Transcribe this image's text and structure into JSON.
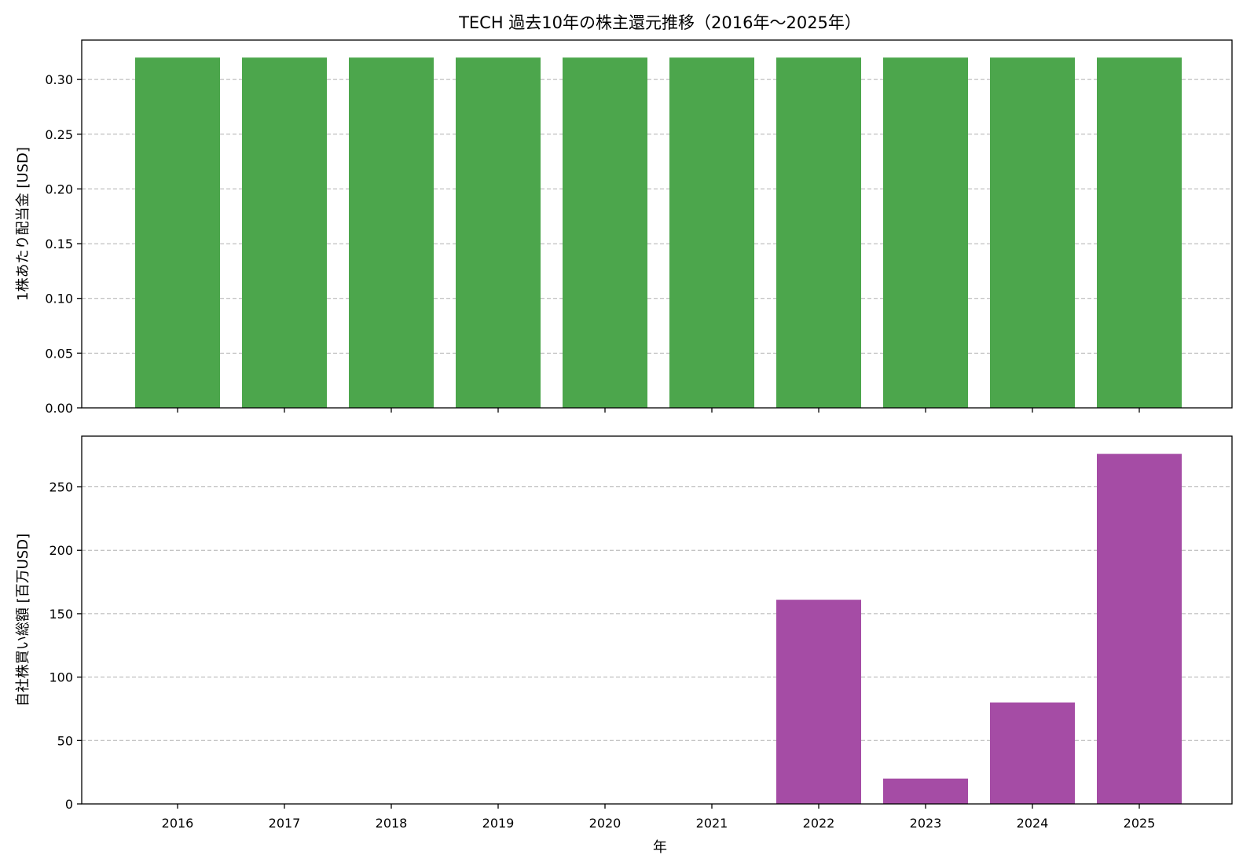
{
  "chart_data": {
    "type": "bar",
    "title": "TECH 過去10年の株主還元推移（2016年〜2025年）",
    "xlabel": "年",
    "categories": [
      "2016",
      "2017",
      "2018",
      "2019",
      "2020",
      "2021",
      "2022",
      "2023",
      "2024",
      "2025"
    ],
    "grid": "y-dashed",
    "panels": [
      {
        "name": "dividend",
        "ylabel": "1株あたり配当金 [USD]",
        "color": "#4ca64c",
        "values": [
          0.32,
          0.32,
          0.32,
          0.32,
          0.32,
          0.32,
          0.32,
          0.32,
          0.32,
          0.32
        ],
        "ylim": [
          0,
          0.336
        ],
        "yticks": [
          0.0,
          0.05,
          0.1,
          0.15,
          0.2,
          0.25,
          0.3
        ],
        "ytick_labels": [
          "0.00",
          "0.05",
          "0.10",
          "0.15",
          "0.20",
          "0.25",
          "0.30"
        ]
      },
      {
        "name": "buyback",
        "ylabel": "自社株買い総額 [百万USD]",
        "color": "#a54ca5",
        "values": [
          0,
          0,
          0,
          0,
          0,
          0,
          161,
          20,
          80,
          276
        ],
        "ylim": [
          0,
          290
        ],
        "yticks": [
          0,
          50,
          100,
          150,
          200,
          250
        ],
        "ytick_labels": [
          "0",
          "50",
          "100",
          "150",
          "200",
          "250"
        ]
      }
    ]
  }
}
